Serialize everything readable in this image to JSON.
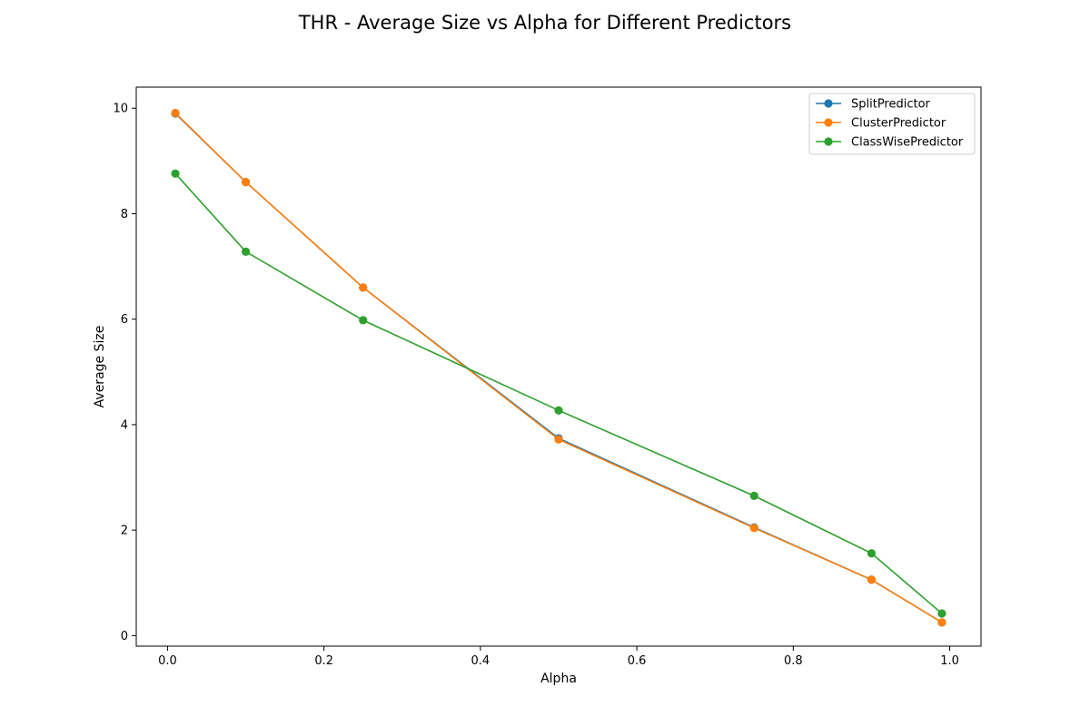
{
  "chart_data": {
    "type": "line",
    "title": "THR - Average Size vs Alpha for Different Predictors",
    "xlabel": "Alpha",
    "ylabel": "Average Size",
    "xlim": [
      -0.04,
      1.04
    ],
    "ylim": [
      -0.2,
      10.4
    ],
    "xticks": [
      0.0,
      0.2,
      0.4,
      0.6,
      0.8,
      1.0
    ],
    "xtick_labels": [
      "0.0",
      "0.2",
      "0.4",
      "0.6",
      "0.8",
      "1.0"
    ],
    "yticks": [
      0,
      2,
      4,
      6,
      8,
      10
    ],
    "ytick_labels": [
      "0",
      "2",
      "4",
      "6",
      "8",
      "10"
    ],
    "grid": false,
    "legend_position": "top-right",
    "x": [
      0.01,
      0.1,
      0.25,
      0.5,
      0.75,
      0.9,
      0.99
    ],
    "series": [
      {
        "name": "SplitPredictor",
        "color": "#1f77b4",
        "marker": "circle",
        "values": [
          9.9,
          8.6,
          6.6,
          3.74,
          2.05,
          1.06,
          0.25
        ]
      },
      {
        "name": "ClusterPredictor",
        "color": "#ff7f0e",
        "marker": "circle",
        "values": [
          9.91,
          8.6,
          6.6,
          3.72,
          2.04,
          1.06,
          0.25
        ]
      },
      {
        "name": "ClassWisePredictor",
        "color": "#2ca02c",
        "marker": "circle",
        "values": [
          8.76,
          7.28,
          5.98,
          4.27,
          2.65,
          1.56,
          0.42
        ]
      }
    ]
  }
}
